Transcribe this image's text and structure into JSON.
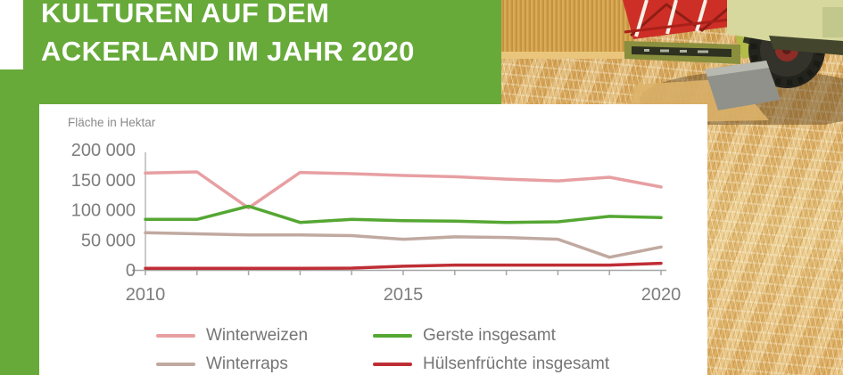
{
  "header": {
    "title_line1": "KULTUREN AUF DEM",
    "title_line2": "ACKERLAND IM JAHR 2020"
  },
  "colors": {
    "brand_green": "#67aa3a",
    "axis_line": "#a5a5a5",
    "axis_text": "#7d7d7d",
    "note_text": "#8a8a8a",
    "legend_text": "#757575"
  },
  "chart_data": {
    "type": "line",
    "note": "Fläche in Hektar",
    "x": [
      2010,
      2011,
      2012,
      2013,
      2014,
      2015,
      2016,
      2017,
      2018,
      2019,
      2020
    ],
    "series": [
      {
        "name": "Winterweizen",
        "color": "#e79fa2",
        "values": [
          161000,
          163000,
          103000,
          162000,
          160000,
          157000,
          155000,
          151000,
          148000,
          154000,
          138000
        ]
      },
      {
        "name": "Gerste insgesamt",
        "color": "#55a733",
        "values": [
          84000,
          84000,
          106000,
          79000,
          84000,
          82000,
          81000,
          79000,
          80000,
          89000,
          87000
        ]
      },
      {
        "name": "Winterraps",
        "color": "#c0a9a0",
        "values": [
          62000,
          60000,
          58000,
          58000,
          57000,
          51000,
          55000,
          54000,
          51000,
          21000,
          38000
        ]
      },
      {
        "name": "Hülsenfrüchte insgesamt",
        "color": "#bf2e35",
        "values": [
          2500,
          2500,
          2500,
          2500,
          3000,
          6000,
          8000,
          8000,
          8000,
          8000,
          11000
        ]
      }
    ],
    "ylim": [
      0,
      200000
    ],
    "yticks": [
      {
        "label": "200 000",
        "value": 200000
      },
      {
        "label": "150 000",
        "value": 150000
      },
      {
        "label": "100 000",
        "value": 100000
      },
      {
        "label": "50 000",
        "value": 50000
      },
      {
        "label": "0",
        "value": 0
      }
    ],
    "xticks": [
      {
        "label": "2010",
        "index": 0
      },
      {
        "label": "2015",
        "index": 5
      },
      {
        "label": "2020",
        "index": 10
      }
    ],
    "grid": false,
    "legend_position": "bottom"
  }
}
